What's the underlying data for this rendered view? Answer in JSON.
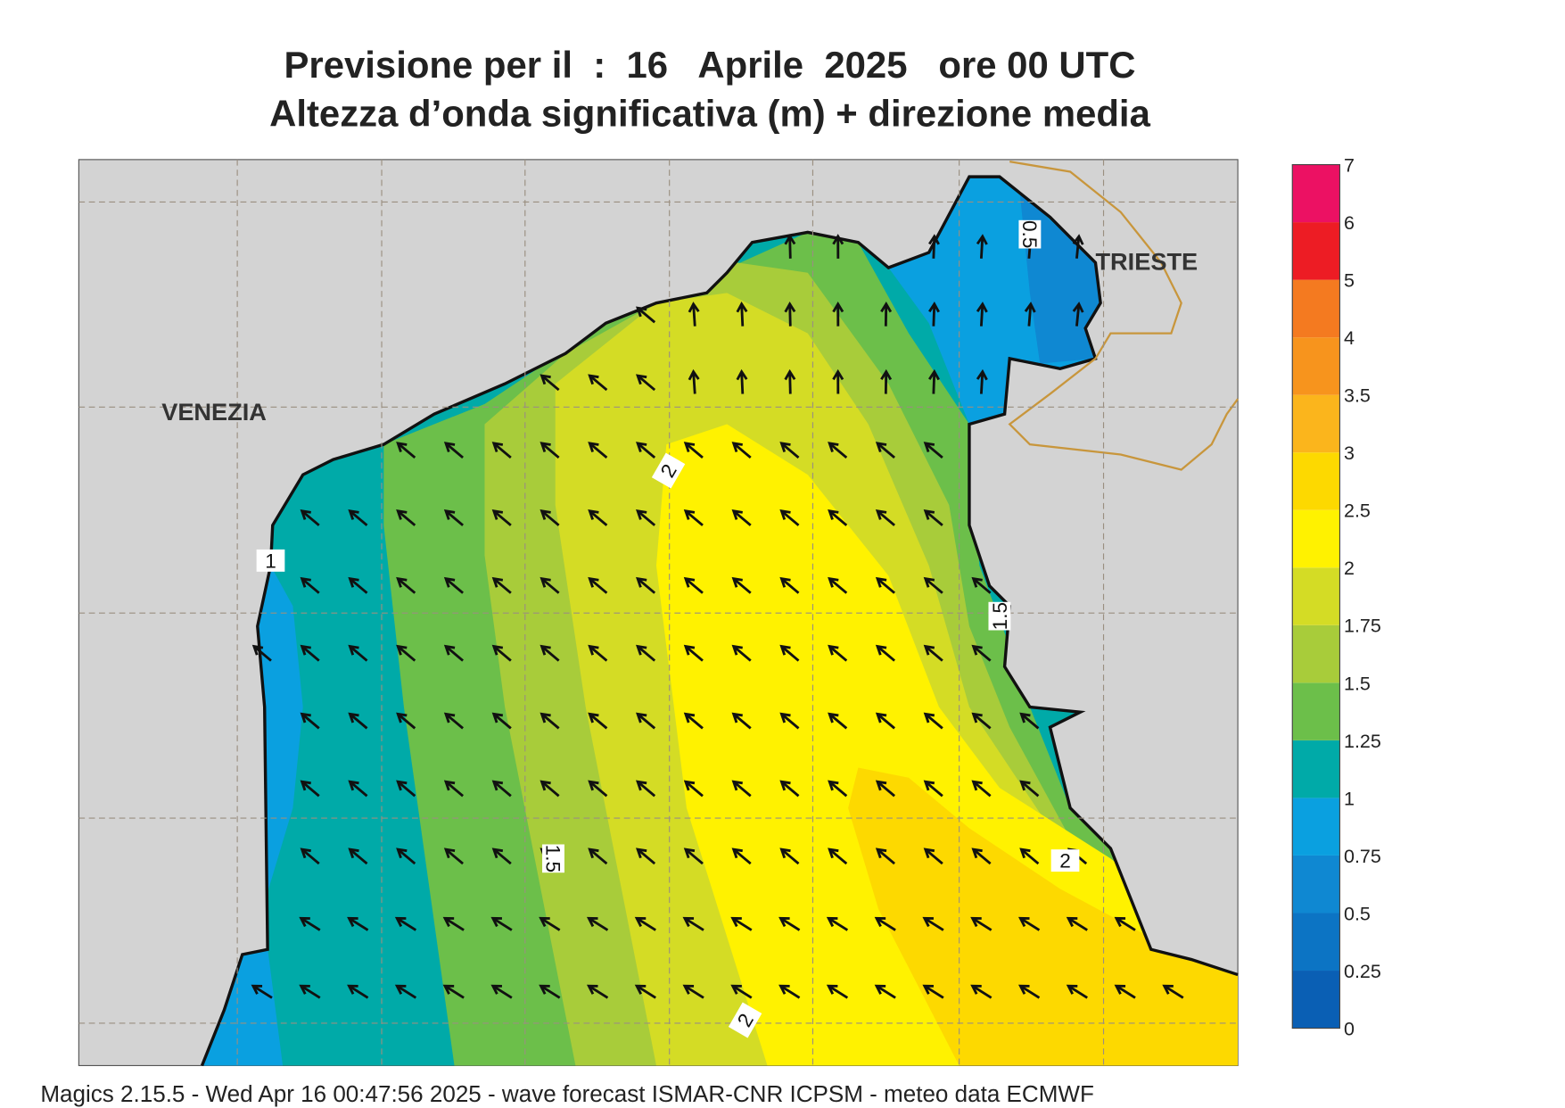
{
  "header": {
    "title_line1": "Previsione per il  :  16   Aprile  2025   ore 00 UTC",
    "title_line2": "Altezza d’onda significativa (m) + direzione media"
  },
  "map": {
    "places": [
      "VENEZIA",
      "TRIESTE"
    ],
    "contour_labels": [
      0.5,
      2,
      1,
      1.5,
      1.5,
      2,
      2
    ]
  },
  "colorbar": {
    "ticks": [
      0,
      0.25,
      0.5,
      0.75,
      1,
      1.25,
      1.5,
      1.75,
      2,
      2.5,
      3,
      3.5,
      4,
      5,
      6,
      7
    ],
    "colors": [
      "#0a5fb4",
      "#0c74c4",
      "#0f88d2",
      "#0aa0e0",
      "#00aaa8",
      "#6cbf4a",
      "#a8cc3a",
      "#d4dc25",
      "#fff200",
      "#fdd900",
      "#fbb51c",
      "#f7941d",
      "#f47a20",
      "#ed1c24",
      "#ec1163"
    ]
  },
  "footer": "Magics 2.15.5 - Wed Apr 16 00:47:56 2025 - wave forecast  ISMAR-CNR  ICPSM - meteo data   ECMWF"
}
